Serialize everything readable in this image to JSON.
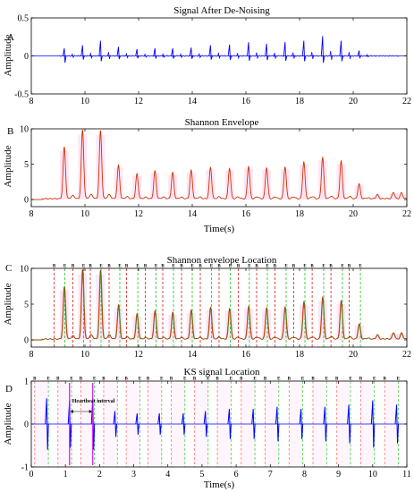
{
  "chart_data": [
    {
      "id": "A",
      "type": "line",
      "letter": "A",
      "title": "Signal After De-Noising",
      "xlabel": "",
      "ylabel": "Amplitude",
      "xlim": [
        8,
        22
      ],
      "ylim": [
        -0.5,
        0.5
      ],
      "xticks": [
        8,
        10,
        12,
        14,
        16,
        18,
        20,
        22
      ],
      "yticks": [
        -0.5,
        0,
        0.5
      ],
      "color": "#0000ff",
      "beats": [
        {
          "t": 9.23,
          "a": 0.1
        },
        {
          "t": 9.91,
          "a": 0.14
        },
        {
          "t": 10.58,
          "a": 0.2
        },
        {
          "t": 11.25,
          "a": 0.12
        },
        {
          "t": 11.94,
          "a": 0.09
        },
        {
          "t": 12.61,
          "a": 0.1
        },
        {
          "t": 13.27,
          "a": 0.1
        },
        {
          "t": 13.96,
          "a": 0.11
        },
        {
          "t": 14.68,
          "a": 0.14
        },
        {
          "t": 15.39,
          "a": 0.15
        },
        {
          "t": 16.1,
          "a": 0.18
        },
        {
          "t": 16.77,
          "a": 0.16
        },
        {
          "t": 17.46,
          "a": 0.18
        },
        {
          "t": 18.16,
          "a": 0.2
        },
        {
          "t": 18.86,
          "a": 0.26
        },
        {
          "t": 19.55,
          "a": 0.2
        },
        {
          "t": 20.22,
          "a": 0.07
        }
      ]
    },
    {
      "id": "B",
      "type": "line",
      "letter": "B",
      "title": "Shannon Envelope",
      "xlabel": "Time(s)",
      "ylabel": "Amplitude",
      "xlim": [
        8,
        22
      ],
      "ylim": [
        -1,
        10
      ],
      "xticks": [
        8,
        10,
        12,
        14,
        16,
        18,
        20,
        22
      ],
      "yticks": [
        0,
        5,
        10
      ],
      "colors": {
        "envelope": "#d03000",
        "shade": "#ff99dd"
      },
      "peaks": [
        {
          "t": 9.23,
          "v": 7.3
        },
        {
          "t": 9.91,
          "v": 9.7
        },
        {
          "t": 10.58,
          "v": 9.6
        },
        {
          "t": 11.25,
          "v": 4.7
        },
        {
          "t": 11.94,
          "v": 3.5
        },
        {
          "t": 12.61,
          "v": 3.9
        },
        {
          "t": 13.27,
          "v": 3.7
        },
        {
          "t": 13.96,
          "v": 4.0
        },
        {
          "t": 14.68,
          "v": 4.4
        },
        {
          "t": 15.39,
          "v": 4.3
        },
        {
          "t": 16.1,
          "v": 4.6
        },
        {
          "t": 16.77,
          "v": 4.4
        },
        {
          "t": 17.46,
          "v": 4.5
        },
        {
          "t": 18.16,
          "v": 5.2
        },
        {
          "t": 18.86,
          "v": 5.8
        },
        {
          "t": 19.55,
          "v": 5.3
        },
        {
          "t": 20.22,
          "v": 2.1
        },
        {
          "t": 20.9,
          "v": 0.6
        },
        {
          "t": 21.5,
          "v": 0.9
        },
        {
          "t": 21.8,
          "v": 0.8
        }
      ]
    },
    {
      "id": "C",
      "type": "line",
      "letter": "C",
      "title": "Shannon envelope Location",
      "xlabel": "",
      "ylabel": "Amplitude",
      "xlim": [
        8,
        22
      ],
      "ylim": [
        -1,
        10
      ],
      "xticks": [
        8,
        10,
        12,
        14,
        16,
        18,
        20,
        22
      ],
      "yticks": [
        0,
        5,
        10
      ],
      "marker_labels": {
        "b": "B",
        "e": "E"
      },
      "colors": {
        "envelope": "#d03000",
        "overlay": "#008000",
        "begin": "#cc0000",
        "end": "#00bb00",
        "shade": "#ff99dd"
      },
      "markers": [
        {
          "b": 8.85,
          "e": 9.25
        },
        {
          "b": 9.55,
          "e": 9.95
        },
        {
          "b": 10.2,
          "e": 10.6
        },
        {
          "b": 10.9,
          "e": 11.3
        },
        {
          "b": 11.55,
          "e": 11.97
        },
        {
          "b": 12.25,
          "e": 12.65
        },
        {
          "b": 12.9,
          "e": 13.3
        },
        {
          "b": 13.6,
          "e": 14.0
        },
        {
          "b": 14.3,
          "e": 14.72
        },
        {
          "b": 15.0,
          "e": 15.42
        },
        {
          "b": 15.72,
          "e": 16.13
        },
        {
          "b": 16.4,
          "e": 16.8
        },
        {
          "b": 17.08,
          "e": 17.5
        },
        {
          "b": 17.78,
          "e": 18.2
        },
        {
          "b": 18.47,
          "e": 18.9
        },
        {
          "b": 19.17,
          "e": 19.6
        },
        {
          "b": 19.85,
          "e": 20.27
        }
      ]
    },
    {
      "id": "D",
      "type": "line",
      "letter": "D",
      "title": "KS signal Location",
      "xlabel": "Time(s)",
      "ylabel": "Amplitude",
      "xlim": [
        0,
        11
      ],
      "ylim": [
        -1,
        1
      ],
      "xticks": [
        0,
        1,
        2,
        3,
        4,
        5,
        6,
        7,
        8,
        9,
        10,
        11
      ],
      "yticks": [
        -1,
        0,
        1
      ],
      "marker_labels": {
        "b": "B",
        "e": "E"
      },
      "annotation": "Heartbeat interval",
      "colors": {
        "signal": "#0000ff",
        "begin": "#ff6666",
        "end": "#33cc33",
        "accent": "#cc00ff",
        "shade": "#ffccee"
      },
      "beats": [
        {
          "t": 0.45,
          "a": 0.6
        },
        {
          "t": 1.12,
          "a": 0.55
        },
        {
          "t": 1.8,
          "a": 0.6
        },
        {
          "t": 2.45,
          "a": 0.3
        },
        {
          "t": 3.1,
          "a": 0.25
        },
        {
          "t": 3.75,
          "a": 0.25
        },
        {
          "t": 4.45,
          "a": 0.25
        },
        {
          "t": 5.1,
          "a": 0.3
        },
        {
          "t": 5.8,
          "a": 0.35
        },
        {
          "t": 6.5,
          "a": 0.35
        },
        {
          "t": 7.2,
          "a": 0.4
        },
        {
          "t": 7.9,
          "a": 0.35
        },
        {
          "t": 8.6,
          "a": 0.4
        },
        {
          "t": 9.3,
          "a": 0.45
        },
        {
          "t": 10.0,
          "a": 0.55
        },
        {
          "t": 10.7,
          "a": 0.45
        }
      ],
      "markers": [
        {
          "b": 0.1,
          "e": 0.5
        },
        {
          "b": 0.78,
          "e": 1.18
        },
        {
          "b": 1.45,
          "e": 1.85
        },
        {
          "b": 2.12,
          "e": 2.52
        },
        {
          "b": 2.78,
          "e": 3.18
        },
        {
          "b": 3.42,
          "e": 3.82
        },
        {
          "b": 4.1,
          "e": 4.5
        },
        {
          "b": 4.78,
          "e": 5.18
        },
        {
          "b": 5.45,
          "e": 5.85
        },
        {
          "b": 6.15,
          "e": 6.55
        },
        {
          "b": 6.85,
          "e": 7.25
        },
        {
          "b": 7.55,
          "e": 7.95
        },
        {
          "b": 8.25,
          "e": 8.65
        },
        {
          "b": 8.95,
          "e": 9.35
        },
        {
          "b": 9.65,
          "e": 10.05
        },
        {
          "b": 10.35,
          "e": 10.75
        }
      ],
      "interval": {
        "from": 1.12,
        "to": 1.8
      }
    }
  ]
}
